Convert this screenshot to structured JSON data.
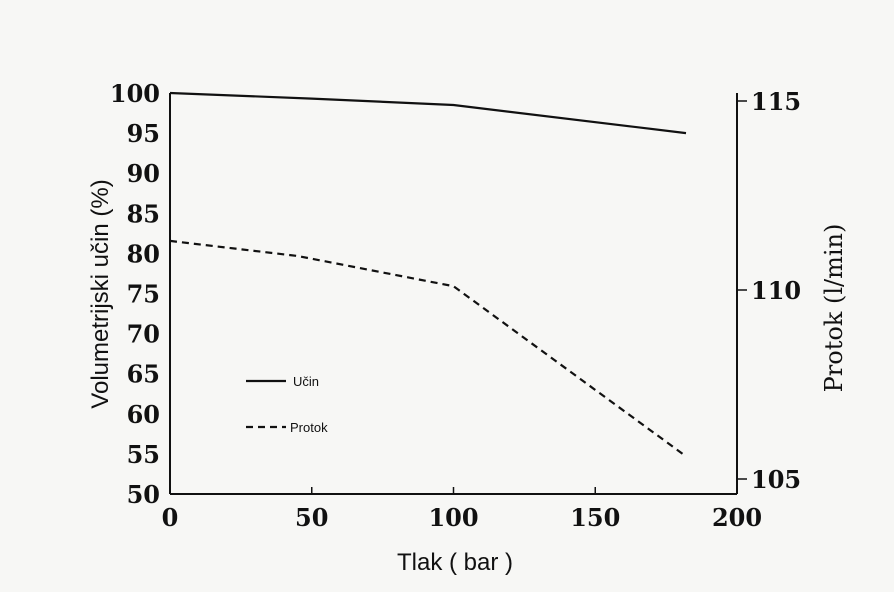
{
  "chart_data": {
    "type": "line",
    "xlabel": "Tlak ( bar )",
    "ylabel_left": "Volumetrijski učin (%)",
    "ylabel_right": "Protok (l/min)",
    "xlim": [
      0,
      200
    ],
    "ylim_left": [
      50,
      100
    ],
    "ylim_right": [
      105,
      115
    ],
    "x_ticks": [
      0,
      50,
      100,
      150,
      200
    ],
    "y_left_ticks": [
      50,
      55,
      60,
      65,
      70,
      75,
      80,
      85,
      90,
      95,
      100
    ],
    "y_right_ticks": [
      105,
      110,
      115
    ],
    "grid": false,
    "legend_position": "center-left",
    "series": [
      {
        "name": "Učin",
        "axis": "left",
        "style": "solid",
        "x": [
          0,
          50,
          100,
          182
        ],
        "y": [
          100,
          99.3,
          98.5,
          95
        ]
      },
      {
        "name": "Protok",
        "axis": "right",
        "style": "dashed",
        "x": [
          0,
          45,
          100,
          182
        ],
        "y": [
          111.3,
          110.9,
          110.1,
          105.6
        ]
      }
    ]
  }
}
